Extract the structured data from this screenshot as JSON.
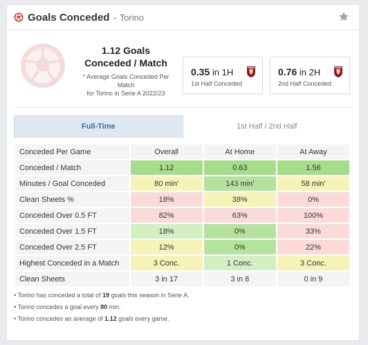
{
  "header": {
    "title": "Goals Conceded",
    "separator": "-",
    "team": "Torino"
  },
  "summary": {
    "avg_value": "1.12 Goals",
    "avg_label": "Conceded / Match",
    "avg_note_line1": "* Average Goals Conceded Per Match",
    "avg_note_line2": "for Torino in Serie A 2022/23",
    "first_half": {
      "value": "0.35",
      "suffix": "in 1H",
      "label": "1st Half Conceded"
    },
    "second_half": {
      "value": "0.76",
      "suffix": "in 2H",
      "label": "2nd Half Conceded"
    }
  },
  "tabs": [
    {
      "label": "Full-Time",
      "active": true
    },
    {
      "label": "1st Half / 2nd Half",
      "active": false
    }
  ],
  "table": {
    "headers": [
      "Conceded Per Game",
      "Overall",
      "At Home",
      "At Away"
    ],
    "rows": [
      {
        "label": "Conceded / Match",
        "cells": [
          "1.12",
          "0.63",
          "1.56"
        ]
      },
      {
        "label": "Minutes / Goal Conceded",
        "cells": [
          "80 min'",
          "143 min'",
          "58 min'"
        ]
      },
      {
        "label": "Clean Sheets %",
        "cells": [
          "18%",
          "38%",
          "0%"
        ]
      },
      {
        "label": "Conceded Over 0.5 FT",
        "cells": [
          "82%",
          "63%",
          "100%"
        ]
      },
      {
        "label": "Conceded Over 1.5 FT",
        "cells": [
          "18%",
          "0%",
          "33%"
        ]
      },
      {
        "label": "Conceded Over 2.5 FT",
        "cells": [
          "12%",
          "0%",
          "22%"
        ]
      },
      {
        "label": "Highest Conceded in a Match",
        "cells": [
          "3 Conc.",
          "1 Conc.",
          "3 Conc."
        ]
      },
      {
        "label": "Clean Sheets",
        "cells": [
          "3 in 17",
          "3 in 8",
          "0 in 9"
        ]
      }
    ]
  },
  "notes": [
    {
      "pre": "Torino has conceded a total of ",
      "bold": "19",
      "post": " goals this season in Serie A."
    },
    {
      "pre": "Torino concedes a goal every ",
      "bold": "80",
      "post": " min."
    },
    {
      "pre": "Torino concedes an average of ",
      "bold": "1.12",
      "post": " goals every game."
    }
  ],
  "colors": {
    "accent_blue": "#3a69a8",
    "ball_red": "#c0392b",
    "green": "#a6dc8a",
    "light_green": "#d3efc3",
    "yellow": "#f6f2b8",
    "red": "#fadbd8",
    "crest_maroon": "#8b1a1a"
  }
}
